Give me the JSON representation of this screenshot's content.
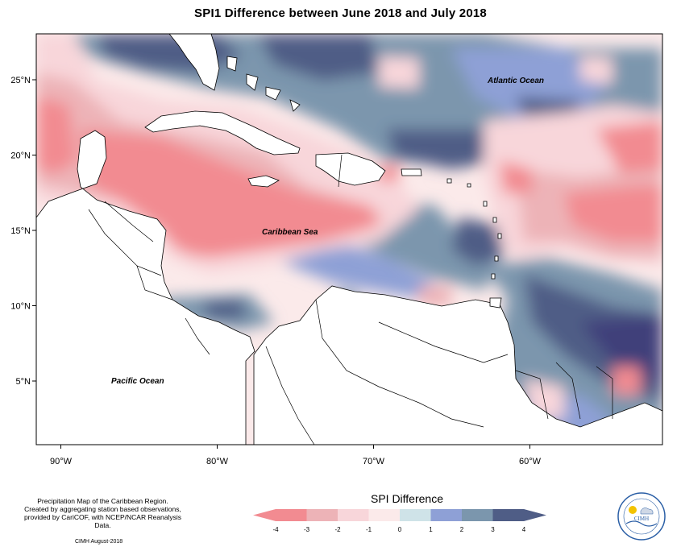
{
  "map": {
    "title": "SPI1 Difference between June 2018 and July 2018",
    "lon_ticks": [
      {
        "lon": -90,
        "label": "90°W"
      },
      {
        "lon": -80,
        "label": "80°W"
      },
      {
        "lon": -70,
        "label": "70°W"
      },
      {
        "lon": -60,
        "label": "60°W"
      }
    ],
    "lat_ticks": [
      {
        "lat": 25,
        "label": "25°N"
      },
      {
        "lat": 20,
        "label": "20°N"
      },
      {
        "lat": 15,
        "label": "15°N"
      },
      {
        "lat": 10,
        "label": "10°N"
      },
      {
        "lat": 5,
        "label": "5°N"
      }
    ],
    "labels": {
      "atlantic": "Atlantic Ocean",
      "caribbean": "Caribbean Sea",
      "pacific": "Pacific Ocean"
    }
  },
  "legend": {
    "title": "SPI Difference",
    "ticks": [
      "-4",
      "-3",
      "-2",
      "-1",
      "0",
      "1",
      "2",
      "3",
      "4"
    ],
    "colors": [
      "#f28b91",
      "#edb3b7",
      "#f8d6da",
      "#fbeaea",
      "#cfe3e8",
      "#8ea0d6",
      "#7b96ad",
      "#4f5d86"
    ]
  },
  "footer": {
    "line1": "Precipitation Map of the Caribbean Region.",
    "line2": "Created by aggregating station based observations,",
    "line3": "provided by CariCOF, with NCEP/NCAR Reanalysis Data.",
    "credit": "CIMH August-2018"
  },
  "logo": {
    "text": "CIMH"
  }
}
